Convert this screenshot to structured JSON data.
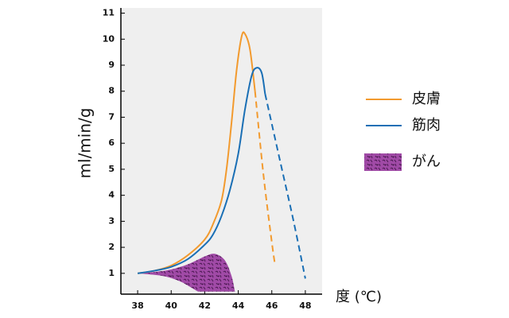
{
  "chart_data": {
    "type": "line",
    "ylabel": "ml/min/g",
    "xlabel": "度 (℃)",
    "xlim": [
      37,
      49
    ],
    "ylim": [
      0.2,
      11.2
    ],
    "xticks": [
      38,
      40,
      42,
      44,
      46,
      48
    ],
    "yticks": [
      1,
      2,
      3,
      4,
      5,
      6,
      7,
      8,
      9,
      10,
      11
    ],
    "series": [
      {
        "name": "皮膚",
        "color": "#f29a2e",
        "solid": {
          "x": [
            38,
            39,
            40,
            41,
            42,
            42.5,
            43,
            43.3,
            43.6,
            43.9,
            44.2,
            44.4,
            44.7,
            45.0
          ],
          "values": [
            1,
            1.1,
            1.3,
            1.7,
            2.3,
            2.9,
            3.8,
            5,
            6.8,
            8.8,
            10.1,
            10.2,
            9.6,
            8.0
          ]
        },
        "dashed": {
          "x": [
            45.0,
            45.5,
            46.0,
            46.2
          ],
          "values": [
            8.0,
            4.8,
            2.2,
            1.3
          ]
        }
      },
      {
        "name": "筋肉",
        "color": "#1a6fb5",
        "solid": {
          "x": [
            38,
            39,
            40,
            41,
            42,
            42.5,
            43,
            43.5,
            44,
            44.4,
            44.8,
            45.1,
            45.4,
            45.6
          ],
          "values": [
            1,
            1.1,
            1.25,
            1.55,
            2.1,
            2.5,
            3.2,
            4.2,
            5.6,
            7.3,
            8.6,
            8.9,
            8.7,
            7.9
          ]
        },
        "dashed": {
          "x": [
            45.6,
            46.5,
            47.3,
            48
          ],
          "values": [
            7.9,
            5.3,
            3,
            0.8
          ]
        }
      }
    ],
    "area": {
      "name": "がん",
      "color": "#a04aa6",
      "upper": {
        "x": [
          38,
          39,
          40,
          41,
          42,
          42.6,
          43.2,
          43.6,
          43.8
        ],
        "values": [
          1,
          1.05,
          1.15,
          1.35,
          1.65,
          1.75,
          1.5,
          0.9,
          0.3
        ]
      },
      "lower": {
        "x": [
          38,
          39.5,
          40.5,
          41.2,
          41.6
        ],
        "values": [
          1,
          0.9,
          0.7,
          0.45,
          0.3
        ]
      }
    }
  }
}
